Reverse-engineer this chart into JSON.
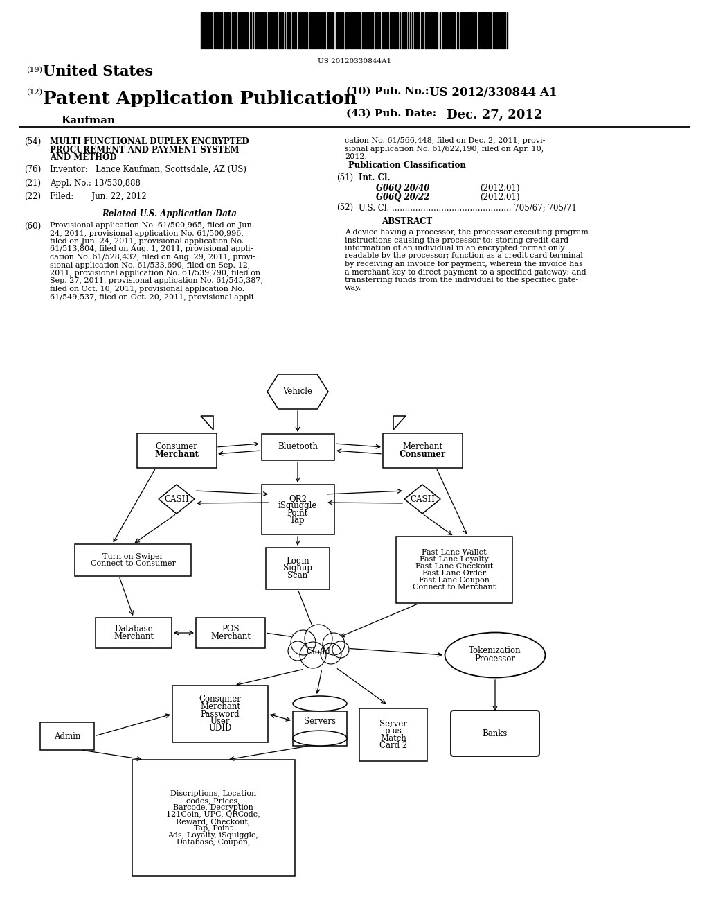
{
  "bg_color": "#ffffff",
  "barcode_text": "US 20120330844A1",
  "patent_number": "US 2012/330844 A1",
  "pub_date": "Dec. 27, 2012",
  "title_19": "United States",
  "title_12": "Patent Application Publication",
  "pub_no_label": "(10) Pub. No.:",
  "pub_no_value": "US 2012/330844 A1",
  "pub_date_label": "(43) Pub. Date:",
  "pub_date_value": "Dec. 27, 2012",
  "author": "Kaufman",
  "field_54_lines": [
    "MULTI FUNCTIONAL DUPLEX ENCRYPTED",
    "PROCUREMENT AND PAYMENT SYSTEM",
    "AND METHOD"
  ],
  "field_76_text": "Inventor:   Lance Kaufman, Scottsdale, AZ (US)",
  "field_21_text": "Appl. No.: 13/530,888",
  "field_22_text": "Filed:       Jun. 22, 2012",
  "related_us_title": "Related U.S. Application Data",
  "field_60_left_lines": [
    "Provisional application No. 61/500,965, filed on Jun.",
    "24, 2011, provisional application No. 61/500,996,",
    "filed on Jun. 24, 2011, provisional application No.",
    "61/513,804, filed on Aug. 1, 2011, provisional appli-",
    "cation No. 61/528,432, filed on Aug. 29, 2011, provi-",
    "sional application No. 61/533,690, filed on Sep. 12,",
    "2011, provisional application No. 61/539,790, filed on",
    "Sep. 27, 2011, provisional application No. 61/545,387,",
    "filed on Oct. 10, 2011, provisional application No.",
    "61/549,537, filed on Oct. 20, 2011, provisional appli-"
  ],
  "field_60_right_lines": [
    "cation No. 61/566,448, filed on Dec. 2, 2011, provi-",
    "sional application No. 61/622,190, filed on Apr. 10,",
    "2012."
  ],
  "pub_class_title": "Publication Classification",
  "field_51_int_cl": "Int. Cl.",
  "field_51_g0640": "G06Q 20/40",
  "field_51_g0640_date": "(2012.01)",
  "field_51_g0622": "G06Q 20/22",
  "field_51_g0622_date": "(2012.01)",
  "field_52_text": "U.S. Cl. .............................................. 705/67; 705/71",
  "field_57_title": "ABSTRACT",
  "abstract_lines": [
    "A device having a processor, the processor executing program",
    "instructions causing the processor to: storing credit card",
    "information of an individual in an encrypted format only",
    "readable by the processor; function as a credit card terminal",
    "by receiving an invoice for payment, wherein the invoice has",
    "a merchant key to direct payment to a specified gateway; and",
    "transferring funds from the individual to the specified gate-",
    "way."
  ]
}
